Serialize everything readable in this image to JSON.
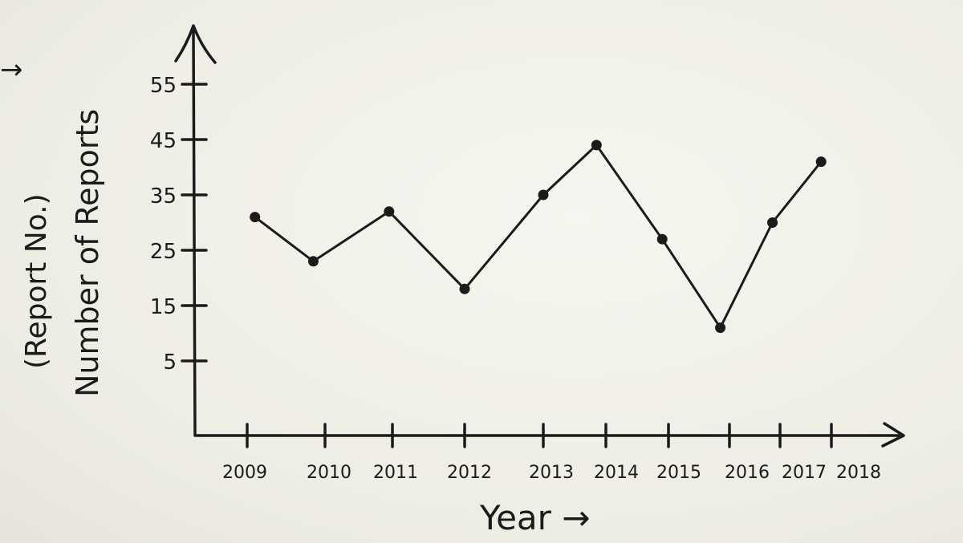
{
  "chart_data": {
    "type": "line",
    "xlabel": "Year →",
    "ylabel": "Number of Reports",
    "ylabel_secondary": "(Report No.)",
    "x_ticks": [
      "2009",
      "2010",
      "2011",
      "2012",
      "2013",
      "2014",
      "2015",
      "2016",
      "2017",
      "2018"
    ],
    "y_ticks": [
      5,
      15,
      25,
      35,
      45,
      55
    ],
    "y_tick_labels": [
      "5",
      "15",
      "25",
      "35",
      "45",
      "55"
    ],
    "series": [
      {
        "points": [
          {
            "x": 2009.1,
            "y": 31
          },
          {
            "x": 2009.85,
            "y": 23
          },
          {
            "x": 2010.95,
            "y": 32
          },
          {
            "x": 2012.0,
            "y": 18
          },
          {
            "x": 2013.0,
            "y": 35
          },
          {
            "x": 2013.85,
            "y": 44
          },
          {
            "x": 2014.9,
            "y": 27
          },
          {
            "x": 2015.85,
            "y": 11
          },
          {
            "x": 2016.85,
            "y": 30
          },
          {
            "x": 2017.8,
            "y": 41
          }
        ]
      }
    ],
    "grid": false,
    "color": "#1b1b1b"
  },
  "page": {
    "edge_mark": "→"
  }
}
